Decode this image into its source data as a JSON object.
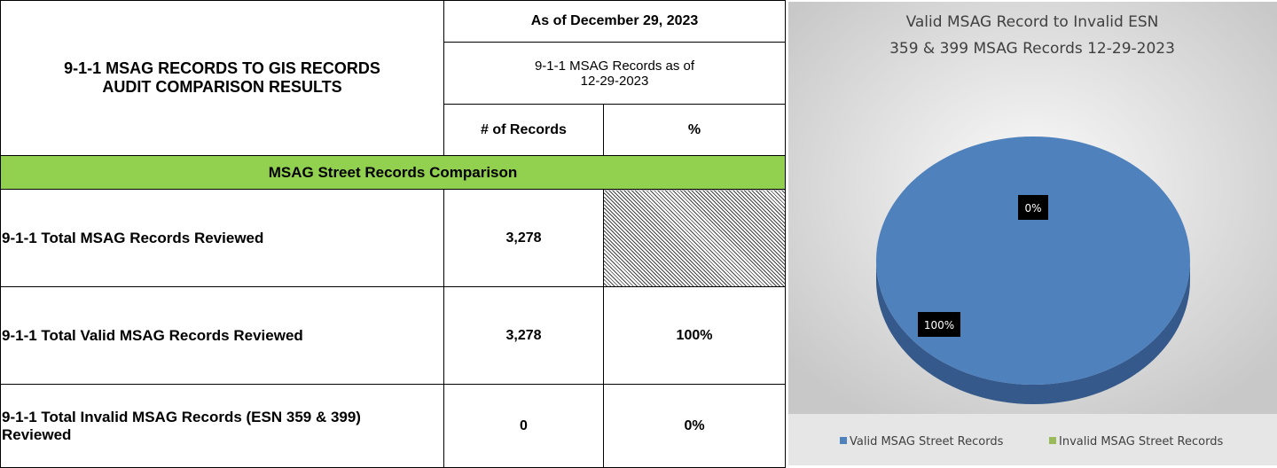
{
  "table": {
    "title": [
      "9-1-1 MSAG RECORDS TO GIS RECORDS",
      "AUDIT COMPARISON RESULTS"
    ],
    "header_date": "As of December 29, 2023",
    "header_sub": "9-1-1 MSAG Records as of 12-29-2023",
    "columns": [
      "# of Records",
      "%"
    ],
    "section": "MSAG Street Records Comparison",
    "rows": [
      [
        "9-1-1 Total MSAG Records Reviewed",
        "3,278"
      ],
      [
        "9-1-1 Total Valid MSAG Records Reviewed",
        "3,278",
        "100%"
      ],
      [
        "9-1-1 Total Invalid MSAG Records (ESN 359 & 399) Reviewed",
        "0",
        "0%"
      ]
    ]
  },
  "chart_data": {
    "type": "pie",
    "title": [
      "Valid MSAG Record to Invalid ESN",
      "359 & 399 MSAG Records 12-29-2023"
    ],
    "categories": [
      "Valid MSAG Street Records",
      "Invalid MSAG Street Records"
    ],
    "values": [
      100,
      0
    ],
    "value_labels": [
      "100%",
      "0%"
    ],
    "colors": [
      "#4f81bd",
      "#9bbb59"
    ],
    "legend": "bottom"
  }
}
